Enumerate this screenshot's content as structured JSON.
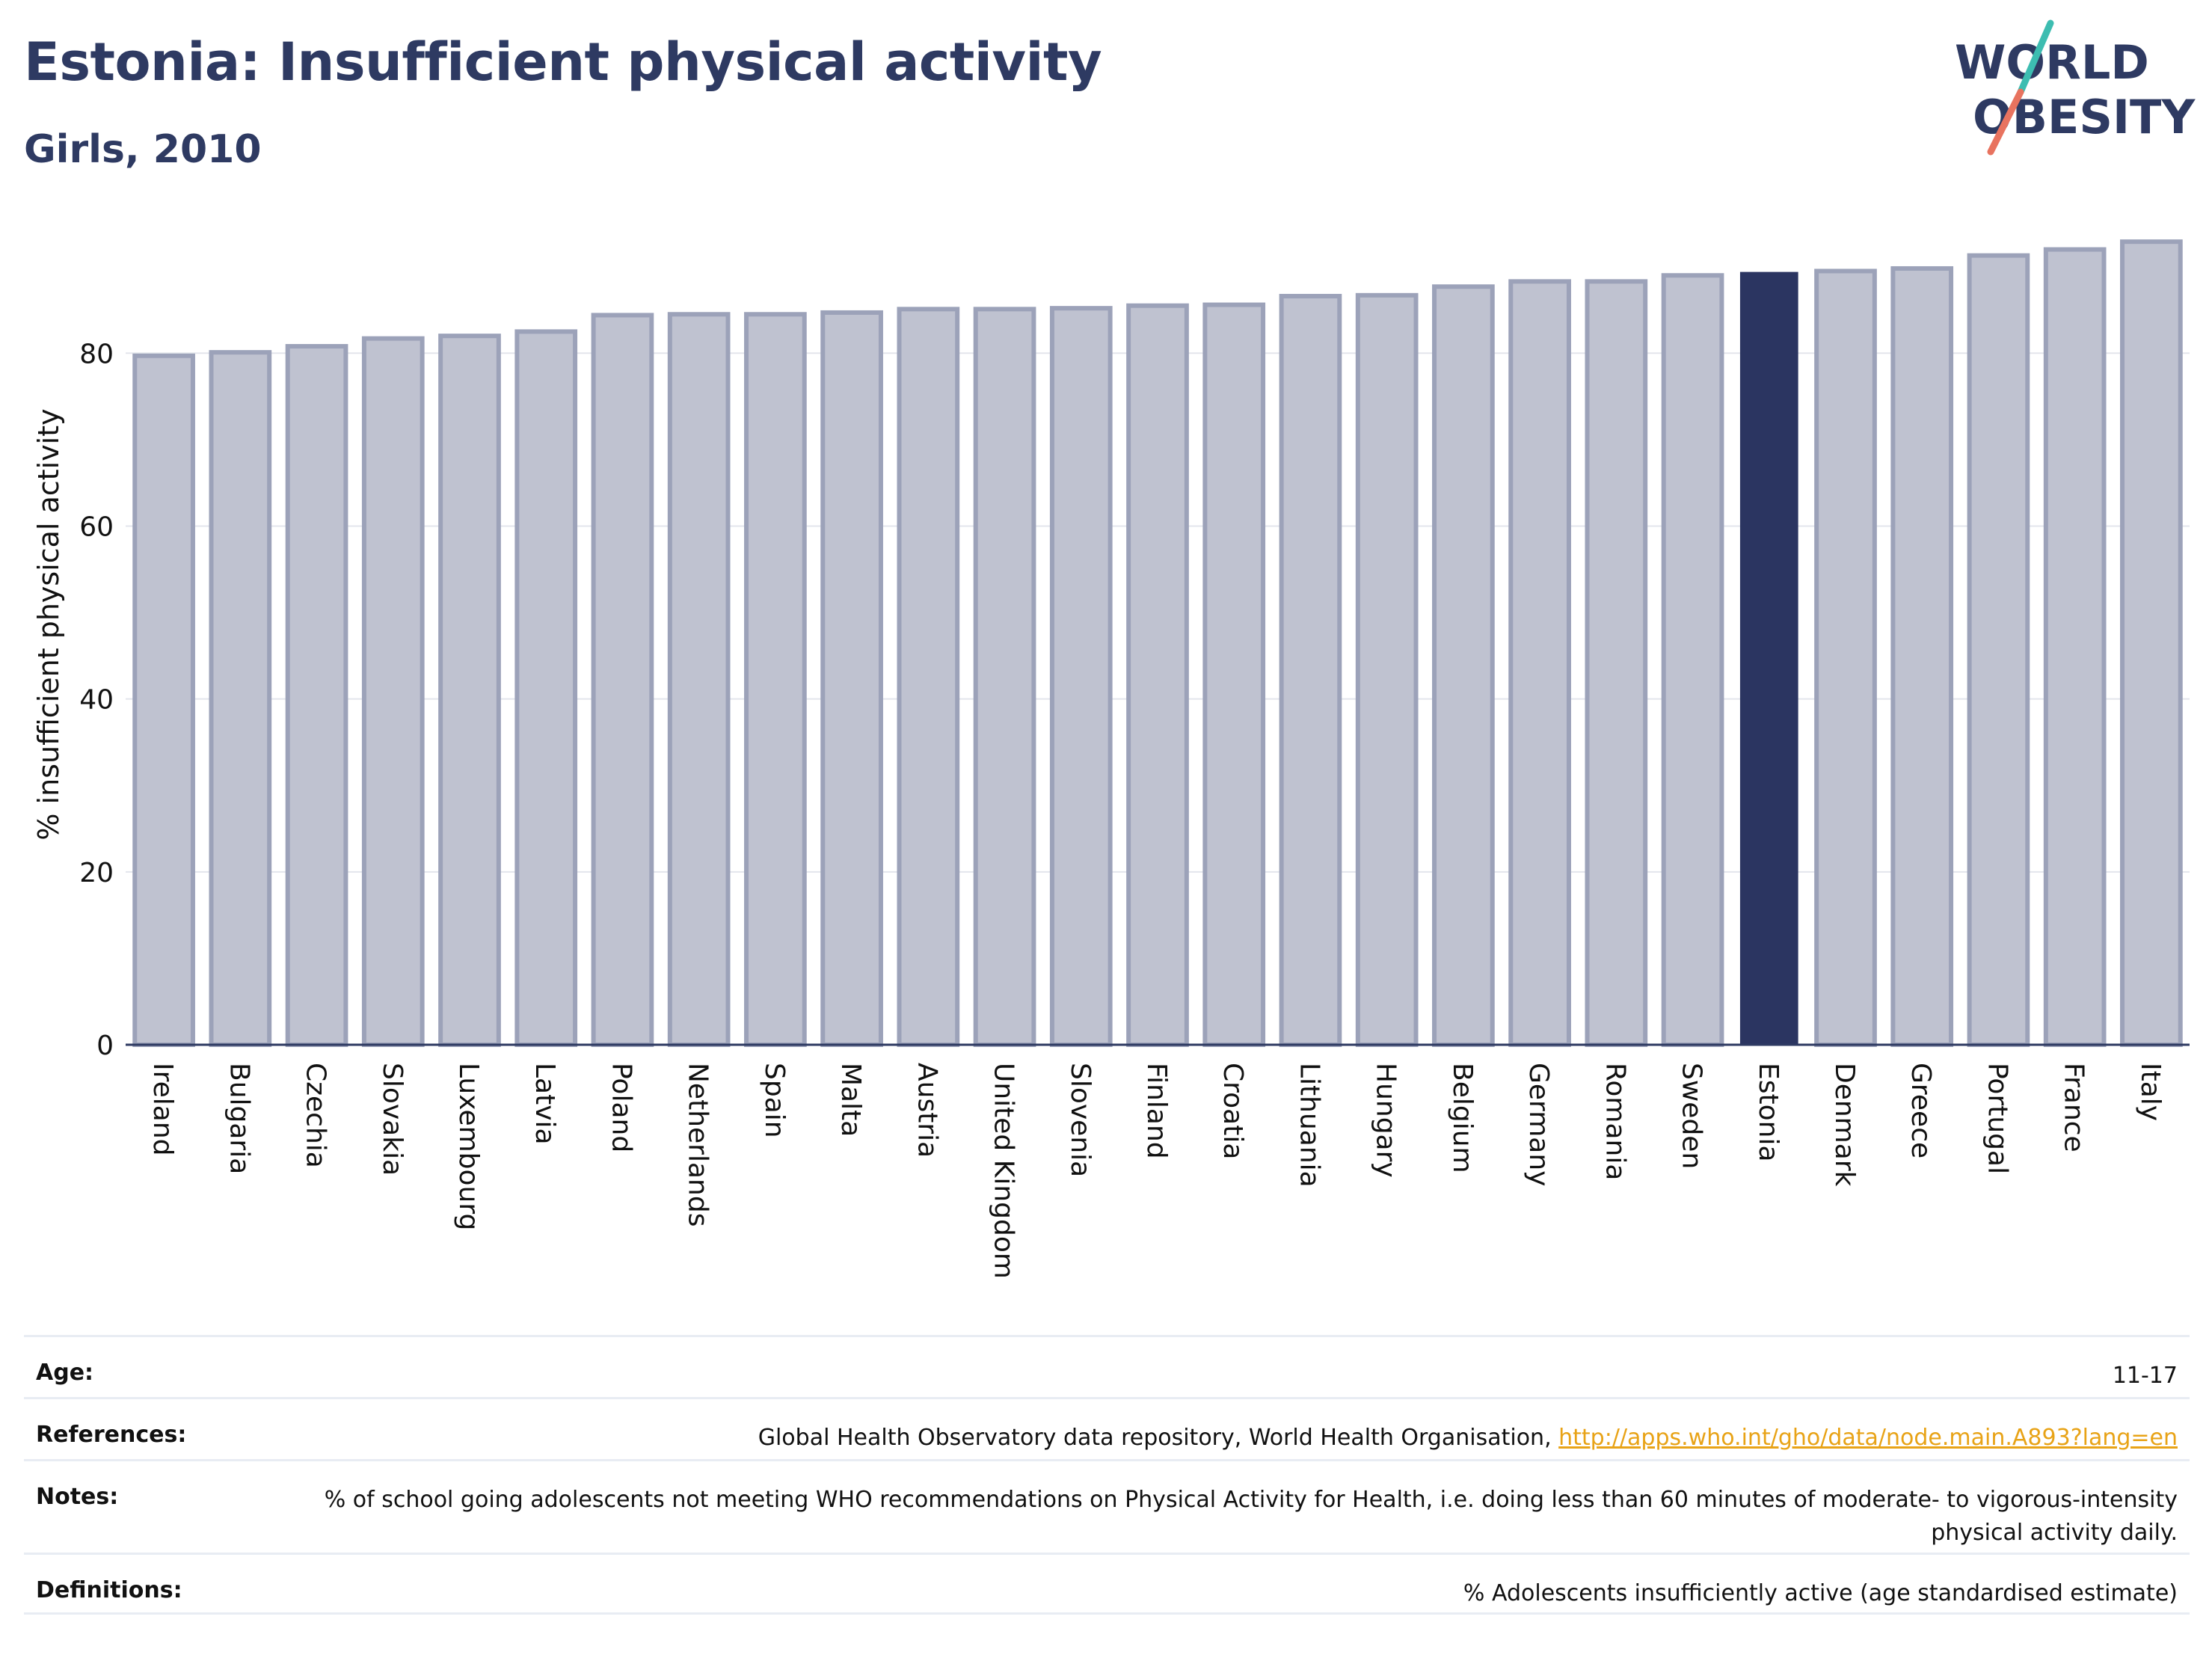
{
  "header": {
    "title": "Estonia: Insufficient physical activity",
    "subtitle": "Girls, 2010"
  },
  "logo": {
    "line1": "WORLD",
    "line2": "OBESITY"
  },
  "colors": {
    "highlight": "#2b3561",
    "bar_fill": "#bfc2d0",
    "bar_edge": "#9ca2b9",
    "text_dark": "#2e3a62",
    "accent_teal": "#3dbdb1",
    "accent_coral": "#e8735f",
    "link": "#e8a317"
  },
  "chart_data": {
    "type": "bar",
    "ylabel": "% insufficient physical activity",
    "ylim": [
      0,
      93
    ],
    "yticks": [
      0,
      20,
      40,
      60,
      80
    ],
    "grid": true,
    "highlight": "Estonia",
    "categories": [
      "Ireland",
      "Bulgaria",
      "Czechia",
      "Slovakia",
      "Luxembourg",
      "Latvia",
      "Poland",
      "Netherlands",
      "Spain",
      "Malta",
      "Austria",
      "United Kingdom",
      "Slovenia",
      "Finland",
      "Croatia",
      "Lithuania",
      "Hungary",
      "Belgium",
      "Germany",
      "Romania",
      "Sweden",
      "Estonia",
      "Denmark",
      "Greece",
      "Portugal",
      "France",
      "Italy"
    ],
    "values": [
      79.7,
      80.1,
      80.8,
      81.7,
      82.0,
      82.5,
      84.4,
      84.5,
      84.5,
      84.7,
      85.1,
      85.1,
      85.2,
      85.5,
      85.6,
      86.6,
      86.7,
      87.7,
      88.3,
      88.3,
      89.0,
      89.4,
      89.5,
      89.8,
      91.3,
      92.0,
      92.9
    ]
  },
  "info": {
    "age": {
      "label": "Age:",
      "value": "11-17"
    },
    "references": {
      "label": "References:",
      "value": "Global Health Observatory data repository, World Health Organisation, ",
      "link": "http://apps.who.int/gho/data/node.main.A893?lang=en"
    },
    "notes": {
      "label": "Notes:",
      "value": "% of school going adolescents not meeting WHO recommendations on Physical Activity for Health, i.e. doing less than 60 minutes of moderate- to vigorous-intensity physical activity daily."
    },
    "definitions": {
      "label": "Definitions:",
      "value": "% Adolescents insufficiently active (age standardised estimate)"
    }
  }
}
